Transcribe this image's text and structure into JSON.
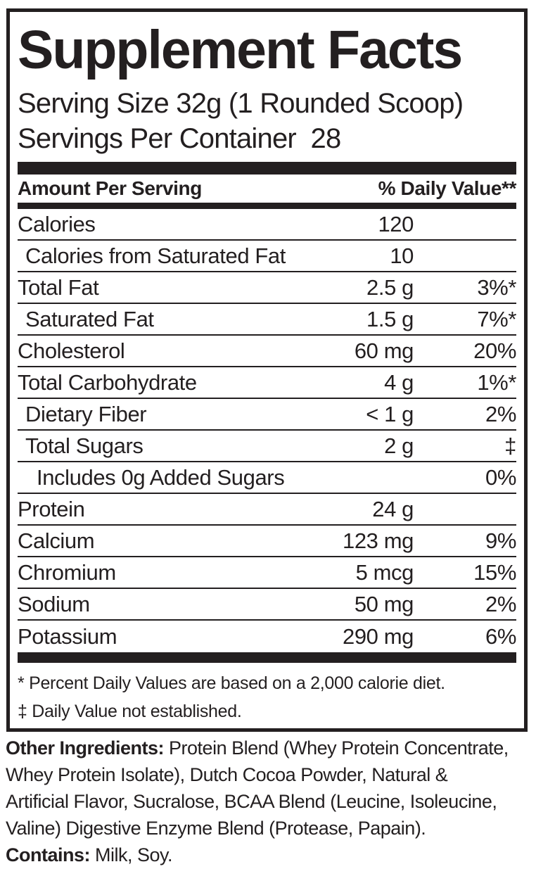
{
  "colors": {
    "ink": "#231f20",
    "background": "#ffffff"
  },
  "panel": {
    "title": "Supplement Facts",
    "serving_size": "Serving Size 32g (1 Rounded Scoop)",
    "servings_per_container": "Servings Per Container  28",
    "columns": {
      "amount_header": "Amount Per Serving",
      "daily_value_header": "% Daily Value**"
    },
    "rows": [
      {
        "name": "Calories",
        "amount": "120",
        "dv": "",
        "indent": 0
      },
      {
        "name": "Calories from Saturated Fat",
        "amount": "10",
        "dv": "",
        "indent": 1
      },
      {
        "name": "Total Fat",
        "amount": "2.5 g",
        "dv": "3%*",
        "indent": 0
      },
      {
        "name": "Saturated Fat",
        "amount": "1.5 g",
        "dv": "7%*",
        "indent": 1
      },
      {
        "name": "Cholesterol",
        "amount": "60 mg",
        "dv": "20%",
        "indent": 0
      },
      {
        "name": "Total Carbohydrate",
        "amount": "4 g",
        "dv": "1%*",
        "indent": 0
      },
      {
        "name": "Dietary Fiber",
        "amount": "< 1 g",
        "dv": "2%",
        "indent": 1
      },
      {
        "name": "Total Sugars",
        "amount": "2 g",
        "dv": "‡",
        "indent": 1
      },
      {
        "name": "Includes 0g Added Sugars",
        "amount": "",
        "dv": "0%",
        "indent": 2
      },
      {
        "name": "Protein",
        "amount": "24 g",
        "dv": "",
        "indent": 0
      },
      {
        "name": "Calcium",
        "amount": "123 mg",
        "dv": "9%",
        "indent": 0
      },
      {
        "name": "Chromium",
        "amount": "5 mcg",
        "dv": "15%",
        "indent": 0
      },
      {
        "name": "Sodium",
        "amount": "50 mg",
        "dv": "2%",
        "indent": 0
      },
      {
        "name": "Potassium",
        "amount": "290 mg",
        "dv": "6%",
        "indent": 0
      }
    ],
    "footnotes": {
      "percent_daily_value": "* Percent Daily Values are based on a 2,000 calorie diet.",
      "daily_value_not_established": "‡ Daily Value not established."
    }
  },
  "other_ingredients": {
    "label": "Other Ingredients:",
    "line1_rest": " Protein Blend (Whey Protein Concentrate,",
    "line2": "Whey Protein Isolate), Dutch Cocoa Powder, Natural &",
    "line3": "Artificial Flavor, Sucralose, BCAA Blend (Leucine, Isoleucine,",
    "line4": "Valine) Digestive Enzyme Blend (Protease, Papain)."
  },
  "contains": {
    "label": "Contains:",
    "text": " Milk, Soy."
  }
}
